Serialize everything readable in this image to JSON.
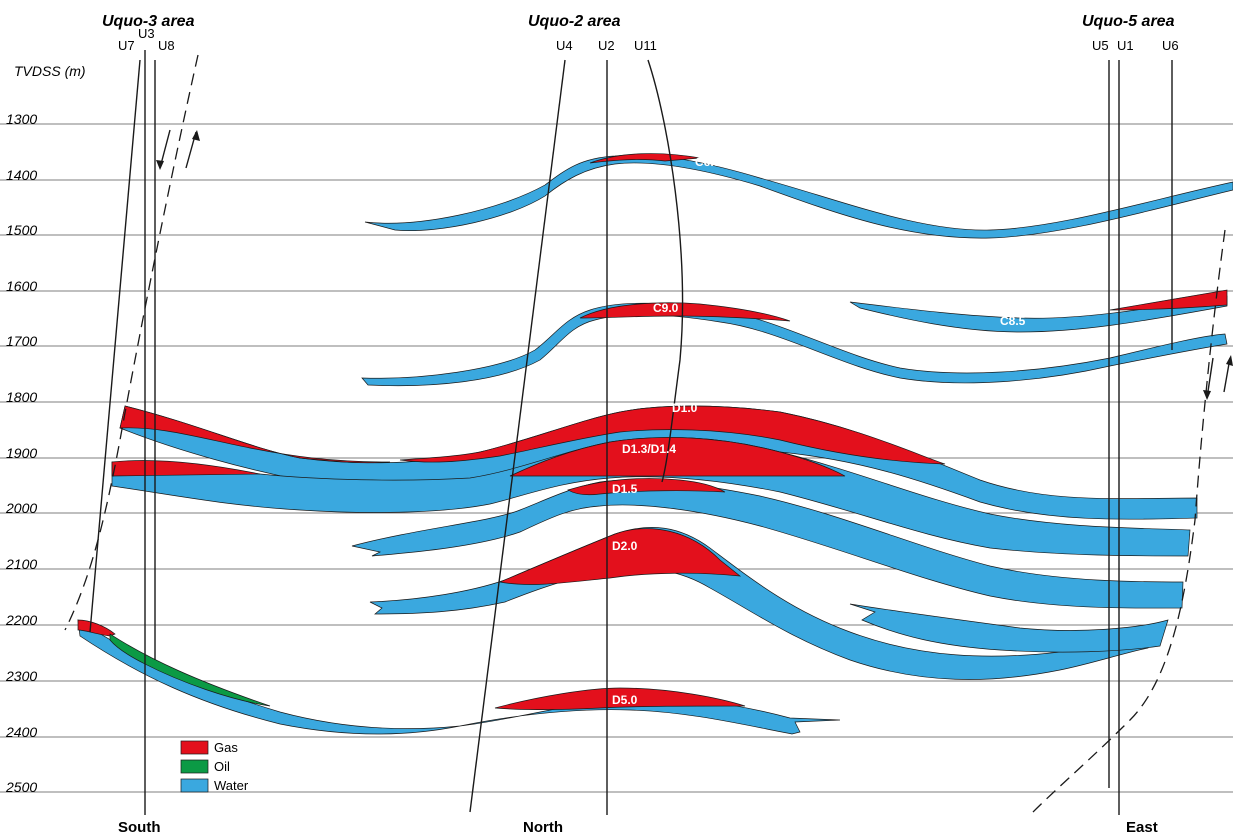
{
  "axis": {
    "title": "TVDSS (m)",
    "depths": [
      "1300",
      "1400",
      "1500",
      "1600",
      "1700",
      "1800",
      "1900",
      "2000",
      "2100",
      "2200",
      "2300",
      "2400",
      "2500"
    ]
  },
  "areas": {
    "uquo3": "Uquo-3 area",
    "uquo2": "Uquo-2 area",
    "uquo5": "Uquo-5 area"
  },
  "wells": {
    "u7": "U7",
    "u3": "U3",
    "u8": "U8",
    "u4": "U4",
    "u2": "U2",
    "u11": "U11",
    "u5": "U5",
    "u1": "U1",
    "u6": "U6"
  },
  "directions": {
    "south": "South",
    "north": "North",
    "east": "East"
  },
  "reservoirs": {
    "c65": "C6.5",
    "c90": "C9.0",
    "c85": "C8.5",
    "d10": "D1.0",
    "d13": "D1.3/D1.4",
    "d15": "D1.5",
    "d20": "D2.0",
    "d50": "D5.0"
  },
  "legend": [
    {
      "label": "Gas",
      "color": "#e3101c"
    },
    {
      "label": "Oil",
      "color": "#0b9a45"
    },
    {
      "label": "Water",
      "color": "#3aa8df"
    }
  ]
}
